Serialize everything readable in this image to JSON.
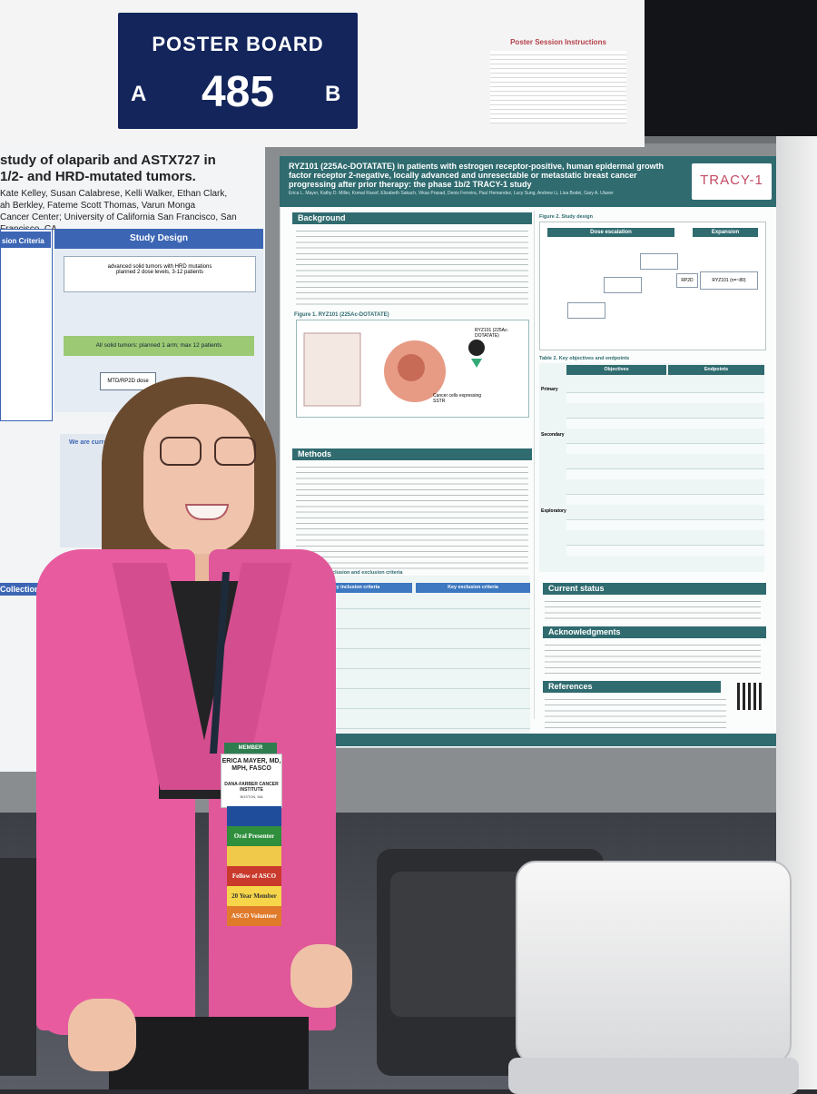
{
  "sign": {
    "title": "POSTER BOARD",
    "letter_left": "A",
    "number": "485",
    "letter_right": "B"
  },
  "session_instructions": {
    "title": "Poster Session Instructions"
  },
  "left_poster": {
    "title_line1": "study of olaparib and ASTX727 in",
    "title_line2": "1/2- and HRD-mutated tumors.",
    "authors_line1": "Kate Kelley, Susan Calabrese, Kelli Walker, Ethan Clark,",
    "authors_line2": "ah Berkley, Fateme Scott Thomas, Varun Monga",
    "authors_line3": "Cancer Center; University of California San Francisco, San Francisco, CA",
    "study_design": "Study Design",
    "inclusion_criteria": "sion Criteria",
    "collection": "Collection",
    "design_text": "advanced solid tumors with HRD mutations",
    "design_sub": "planned 2 dose levels, 3-12 patients",
    "all_solid": "All solid tumors: planned 1 arm; max 12 patients",
    "mtd": "MTD/RP2D dose",
    "currently": "We are currently p"
  },
  "main_poster": {
    "title": "RYZ101 (225Ac-DOTATATE) in patients with estrogen receptor-positive, human epidermal growth factor receptor 2-negative, locally advanced and unresectable or metastatic breast cancer progressing after prior therapy: the phase 1b/2 TRACY-1 study",
    "authors": "Erica L. Mayer, Kathy D. Miller, Komal Raoof, Elizabeth Sakach, Vikas Prasad, Denis Ferreira, Paul Hemandez, Lucy Sung, Andrew Li, Lisa Bodei, Gary A. Ulaner",
    "logo": "TRACY-1",
    "background": "Background",
    "figure1": "Figure 1. RYZ101 (225Ac-DOTATATE)",
    "methods": "Methods",
    "table1": "Table 1. Key inclusion and exclusion criteria",
    "table1_col1": "Key inclusion criteria",
    "table1_col2": "Key exclusion criteria",
    "figure2": "Figure 2. Study design",
    "dose_escalation": "Dose escalation",
    "expansion": "Expansion",
    "table2": "Table 2. Key objectives and endpoints",
    "objectives": "Objectives",
    "endpoints": "Endpoints",
    "primary": "Primary",
    "secondary": "Secondary",
    "exploratory": "Exploratory",
    "current_status": "Current status",
    "acknowledgments": "Acknowledgments",
    "references": "References",
    "fig1_label": "RYZ101 (225Ac-DOTATATE)",
    "cancer_cell": "Cancer cells expressing SSTR",
    "rp2d": "RP2D",
    "ryz101": "RYZ101 (n=~80)"
  },
  "badge": {
    "member": "MEMBER",
    "name": "ERICA MAYER, MD, MPH, FASCO",
    "org": "DANA-FARBER CANCER INSTITUTE",
    "city": "BOSTON, MA",
    "ribbons": [
      "Oral Presenter",
      "Fellow of ASCO",
      "20 Year Member",
      "ASCO Volunteer"
    ]
  },
  "colors": {
    "sign_navy": "#13255b",
    "poster_teal": "#2f6b6f",
    "blazer_pink": "#e85b9f",
    "left_poster_blue": "#3c66b4",
    "tracy_logo": "#c24a62"
  }
}
